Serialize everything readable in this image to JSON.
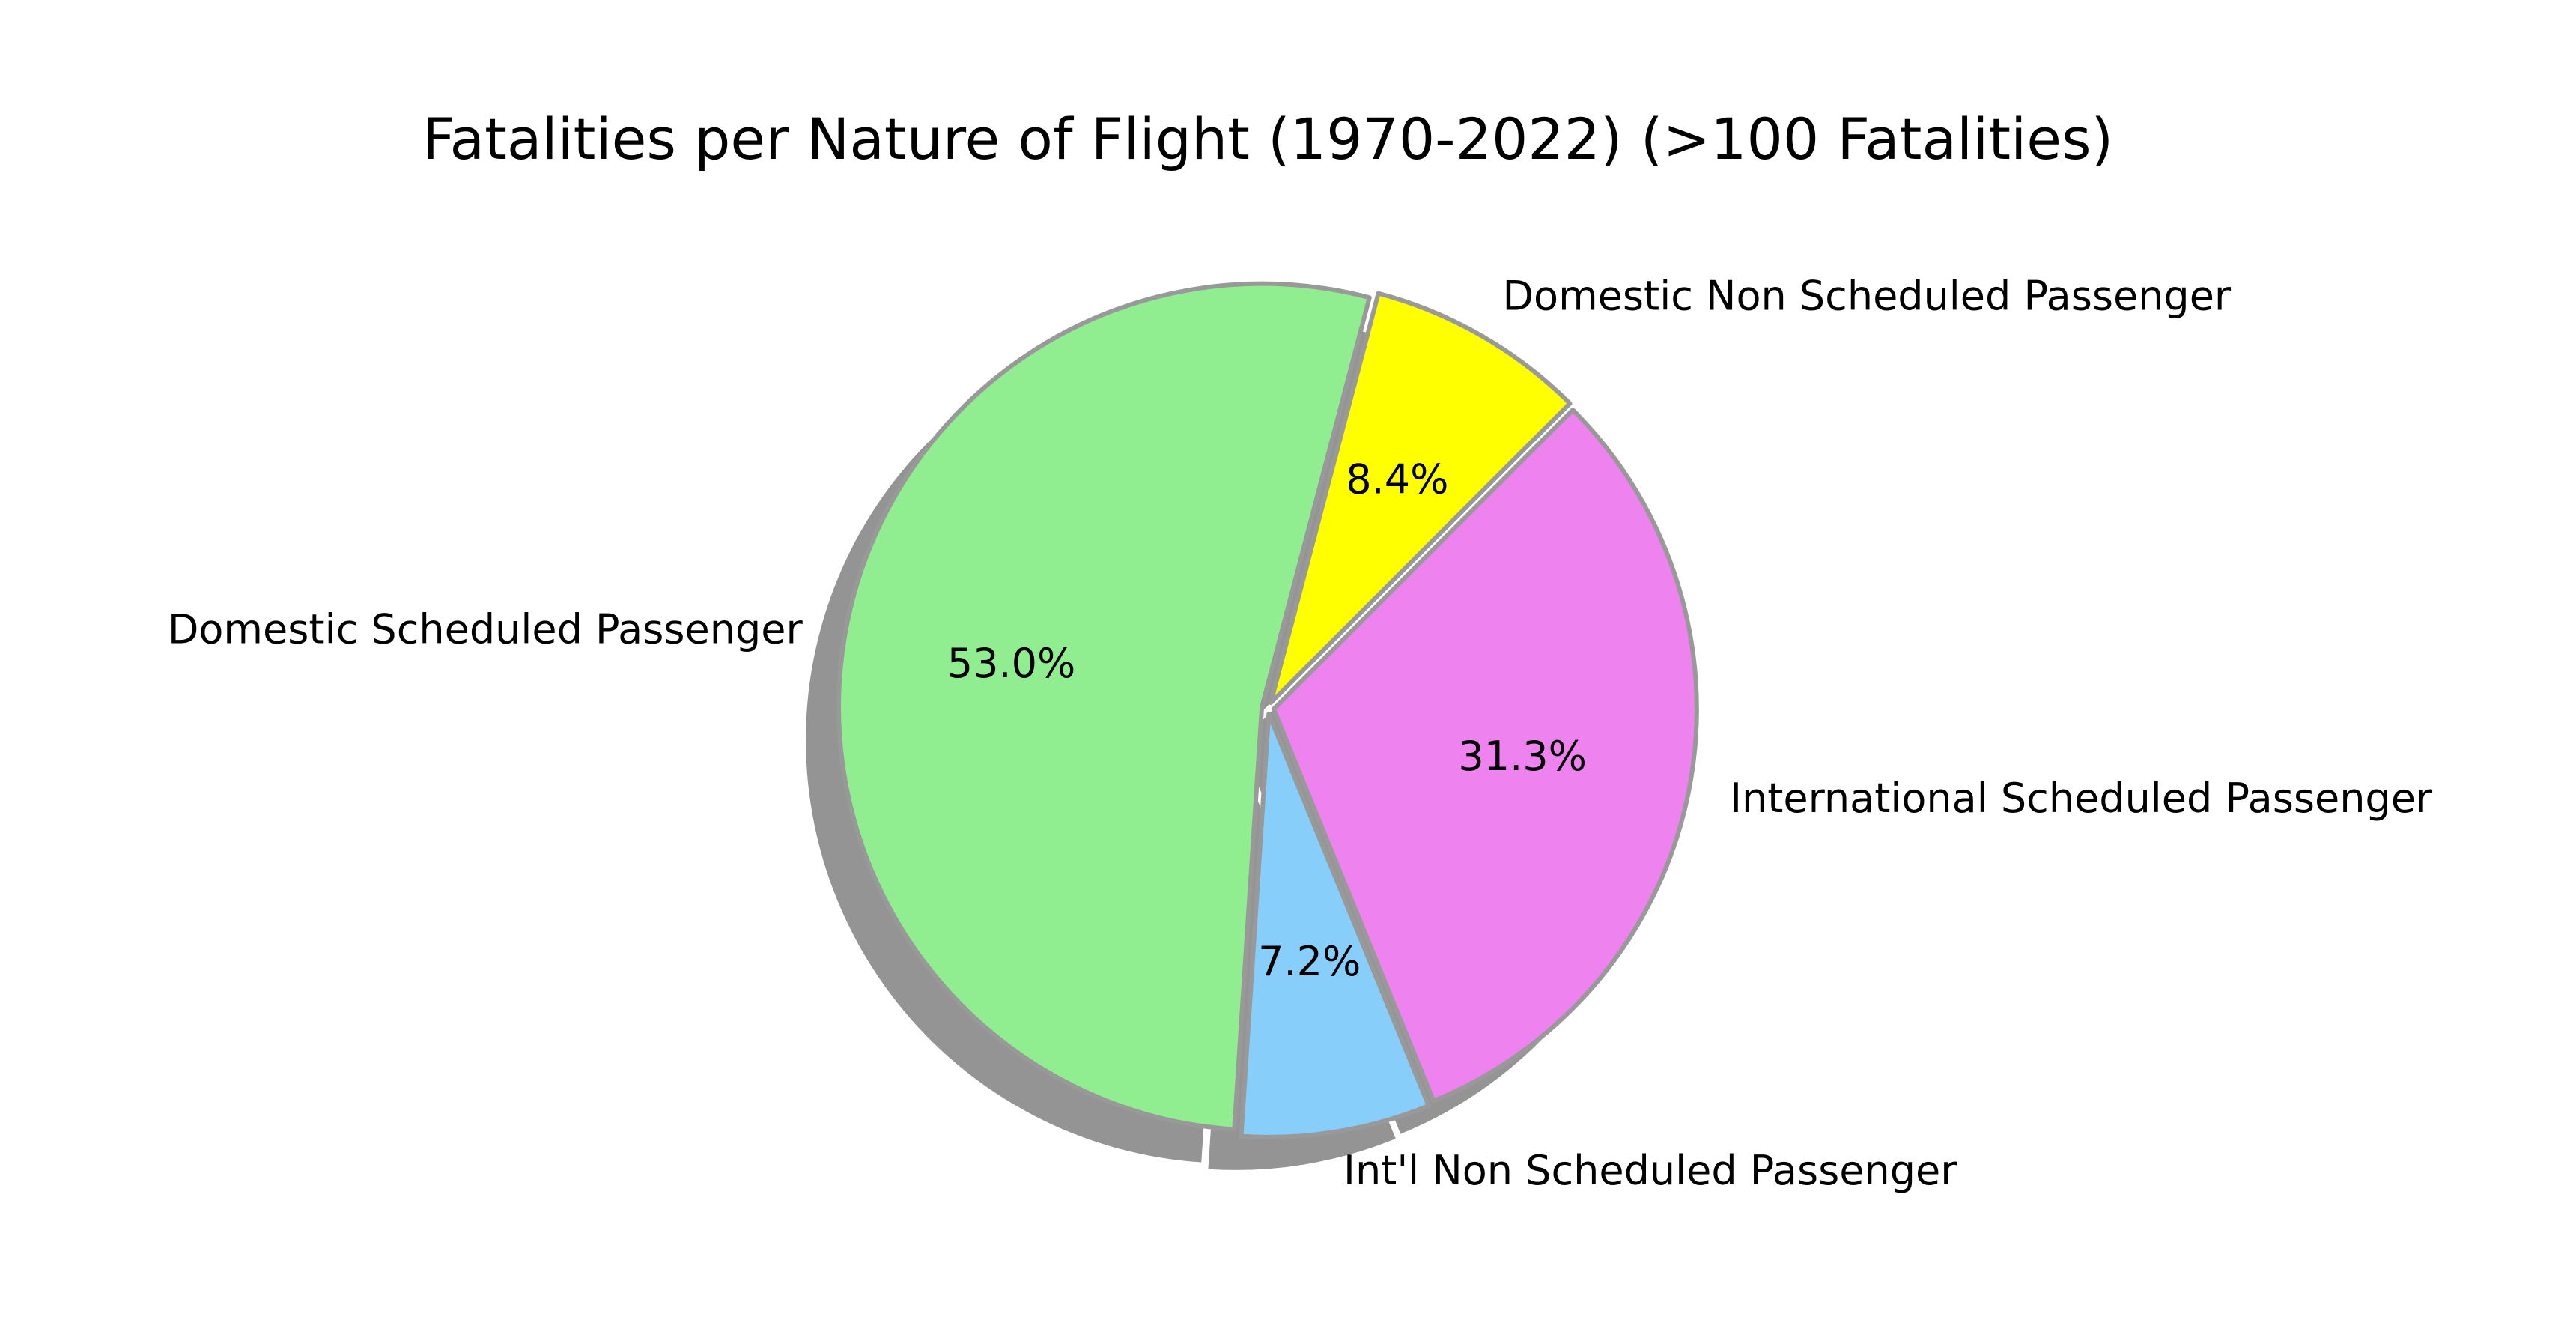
{
  "chart_data": {
    "type": "pie",
    "title": "Fatalities per Nature of Flight (1970-2022) (>100 Fatalities)",
    "slices": [
      {
        "label": "Domestic Non Scheduled Passenger",
        "percent": 8.4,
        "display": "8.4%",
        "color": "#ffff00"
      },
      {
        "label": "Domestic Scheduled Passenger",
        "percent": 53.0,
        "display": "53.0%",
        "color": "#90ee90"
      },
      {
        "label": "Int'l Non Scheduled Passenger",
        "percent": 7.2,
        "display": "7.2%",
        "color": "#87cefa"
      },
      {
        "label": "International Scheduled Passenger",
        "percent": 31.3,
        "display": "31.3%",
        "color": "#ee82ee"
      }
    ],
    "start_angle_deg": 45,
    "shadow": true,
    "explode": true,
    "edge_color": "#999999",
    "legend": "none"
  }
}
